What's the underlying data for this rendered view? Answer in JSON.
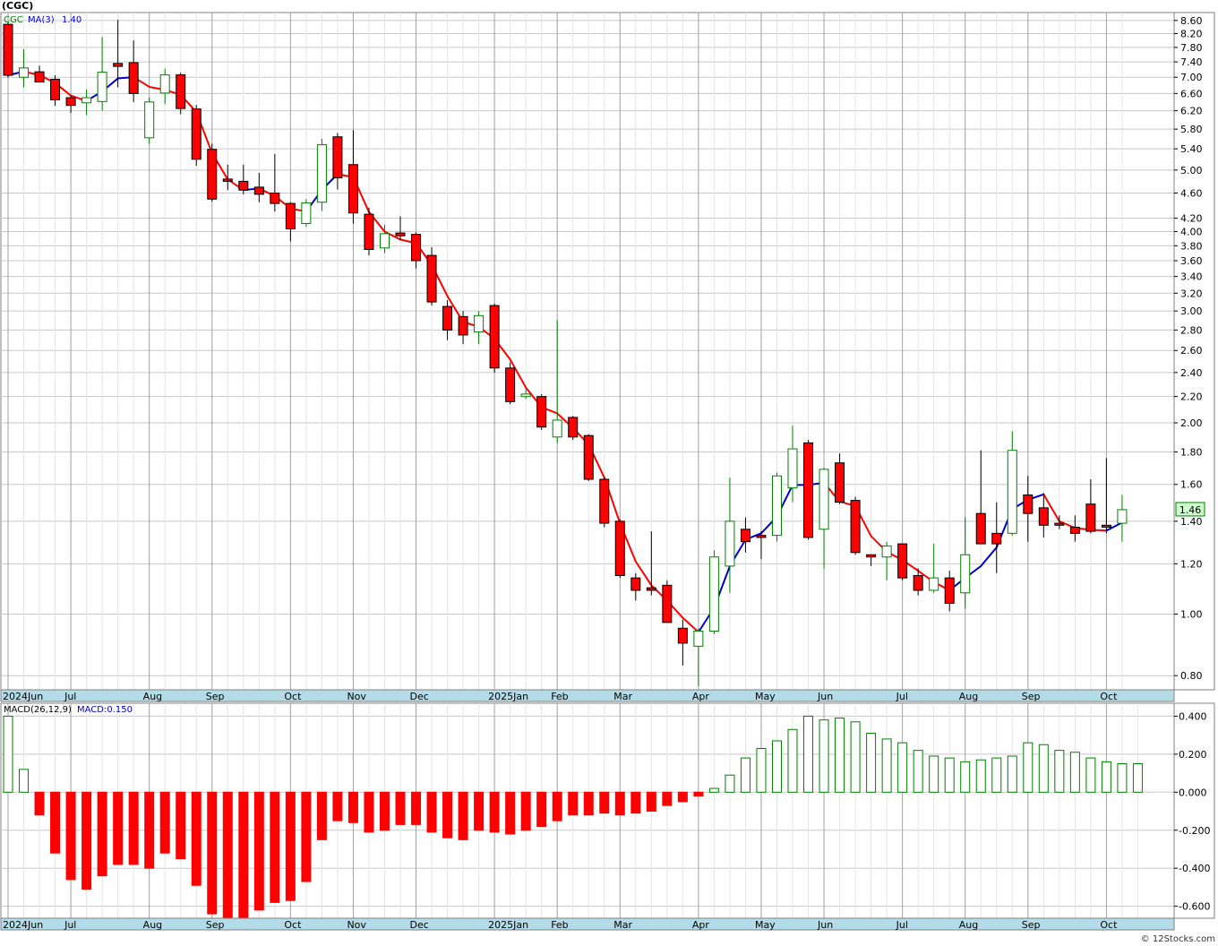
{
  "title": "(CGC)",
  "copyright": "© 12Stocks.com",
  "colors": {
    "up": "#008000",
    "down": "#ff0000",
    "ma_rising": "#0000cc",
    "ma_falling": "#ff0000",
    "macd_pos": "#008000",
    "macd_neg": "#ff0000",
    "axis_bg": "#b4dce8",
    "grid": "#c8c8c8"
  },
  "chart_data": [
    {
      "type": "candlestick",
      "legend": {
        "symbol": "CGC",
        "ma_label": "MA(3)",
        "ma_value": "1.40"
      },
      "last_price_label": "1.46",
      "yscale": "log",
      "ylim": [
        0.76,
        8.85
      ],
      "y_ticks": [
        "0.80",
        "1.00",
        "1.20",
        "1.40",
        "1.60",
        "1.80",
        "2.00",
        "2.20",
        "2.40",
        "2.60",
        "2.80",
        "3.00",
        "3.20",
        "3.40",
        "3.60",
        "3.80",
        "4.00",
        "4.20",
        "4.60",
        "5.00",
        "5.40",
        "5.80",
        "6.20",
        "6.60",
        "7.00",
        "7.40",
        "7.80",
        "8.20",
        "8.60"
      ],
      "x_labels": [
        {
          "i": 0,
          "label": "2024Jun"
        },
        {
          "i": 4,
          "label": "Jul"
        },
        {
          "i": 9,
          "label": "Aug"
        },
        {
          "i": 13,
          "label": "Sep"
        },
        {
          "i": 18,
          "label": "Oct"
        },
        {
          "i": 22,
          "label": "Nov"
        },
        {
          "i": 26,
          "label": "Dec"
        },
        {
          "i": 31,
          "label": "2025Jan"
        },
        {
          "i": 35,
          "label": "Feb"
        },
        {
          "i": 39,
          "label": "Mar"
        },
        {
          "i": 44,
          "label": "Apr"
        },
        {
          "i": 48,
          "label": "May"
        },
        {
          "i": 52,
          "label": "Jun"
        },
        {
          "i": 57,
          "label": "Jul"
        },
        {
          "i": 61,
          "label": "Aug"
        },
        {
          "i": 65,
          "label": "Sep"
        },
        {
          "i": 70,
          "label": "Oct"
        }
      ],
      "candles": [
        {
          "o": 8.48,
          "h": 8.55,
          "l": 6.99,
          "c": 7.05
        },
        {
          "o": 7.0,
          "h": 7.75,
          "l": 6.75,
          "c": 7.24
        },
        {
          "o": 7.14,
          "h": 7.3,
          "l": 6.87,
          "c": 6.88
        },
        {
          "o": 6.95,
          "h": 7.05,
          "l": 6.31,
          "c": 6.45
        },
        {
          "o": 6.5,
          "h": 6.55,
          "l": 6.15,
          "c": 6.32
        },
        {
          "o": 6.38,
          "h": 6.7,
          "l": 6.1,
          "c": 6.5
        },
        {
          "o": 6.41,
          "h": 8.1,
          "l": 6.2,
          "c": 7.13
        },
        {
          "o": 7.36,
          "h": 8.62,
          "l": 6.75,
          "c": 7.28
        },
        {
          "o": 7.38,
          "h": 8.0,
          "l": 6.4,
          "c": 6.6
        },
        {
          "o": 5.62,
          "h": 6.5,
          "l": 5.5,
          "c": 6.4
        },
        {
          "o": 6.61,
          "h": 7.22,
          "l": 6.35,
          "c": 7.06
        },
        {
          "o": 7.06,
          "h": 7.12,
          "l": 6.12,
          "c": 6.25
        },
        {
          "o": 6.24,
          "h": 6.33,
          "l": 5.08,
          "c": 5.2
        },
        {
          "o": 5.39,
          "h": 5.5,
          "l": 4.46,
          "c": 4.5
        },
        {
          "o": 4.84,
          "h": 5.1,
          "l": 4.65,
          "c": 4.8
        },
        {
          "o": 4.8,
          "h": 5.1,
          "l": 4.58,
          "c": 4.65
        },
        {
          "o": 4.7,
          "h": 4.95,
          "l": 4.45,
          "c": 4.58
        },
        {
          "o": 4.6,
          "h": 5.3,
          "l": 4.3,
          "c": 4.43
        },
        {
          "o": 4.43,
          "h": 4.45,
          "l": 3.86,
          "c": 4.04
        },
        {
          "o": 4.12,
          "h": 4.5,
          "l": 4.07,
          "c": 4.44
        },
        {
          "o": 4.45,
          "h": 5.6,
          "l": 4.31,
          "c": 5.48
        },
        {
          "o": 5.64,
          "h": 5.72,
          "l": 4.66,
          "c": 4.86
        },
        {
          "o": 5.1,
          "h": 5.78,
          "l": 4.12,
          "c": 4.28
        },
        {
          "o": 4.26,
          "h": 4.36,
          "l": 3.67,
          "c": 3.75
        },
        {
          "o": 3.77,
          "h": 4.1,
          "l": 3.7,
          "c": 3.97
        },
        {
          "o": 3.98,
          "h": 4.23,
          "l": 3.88,
          "c": 3.94
        },
        {
          "o": 3.96,
          "h": 3.99,
          "l": 3.5,
          "c": 3.6
        },
        {
          "o": 3.67,
          "h": 3.78,
          "l": 3.06,
          "c": 3.1
        },
        {
          "o": 3.05,
          "h": 3.12,
          "l": 2.7,
          "c": 2.8
        },
        {
          "o": 2.94,
          "h": 3.0,
          "l": 2.66,
          "c": 2.75
        },
        {
          "o": 2.78,
          "h": 3.0,
          "l": 2.66,
          "c": 2.95
        },
        {
          "o": 3.06,
          "h": 3.08,
          "l": 2.4,
          "c": 2.44
        },
        {
          "o": 2.44,
          "h": 2.49,
          "l": 2.14,
          "c": 2.16
        },
        {
          "o": 2.2,
          "h": 2.26,
          "l": 2.18,
          "c": 2.22
        },
        {
          "o": 2.2,
          "h": 2.22,
          "l": 1.95,
          "c": 1.97
        },
        {
          "o": 1.9,
          "h": 2.9,
          "l": 1.86,
          "c": 2.02
        },
        {
          "o": 2.04,
          "h": 2.05,
          "l": 1.88,
          "c": 1.9
        },
        {
          "o": 1.91,
          "h": 1.92,
          "l": 1.62,
          "c": 1.63
        },
        {
          "o": 1.63,
          "h": 1.64,
          "l": 1.37,
          "c": 1.39
        },
        {
          "o": 1.4,
          "h": 1.41,
          "l": 1.14,
          "c": 1.15
        },
        {
          "o": 1.14,
          "h": 1.16,
          "l": 1.05,
          "c": 1.09
        },
        {
          "o": 1.1,
          "h": 1.35,
          "l": 1.07,
          "c": 1.09
        },
        {
          "o": 1.11,
          "h": 1.13,
          "l": 0.97,
          "c": 0.97
        },
        {
          "o": 0.95,
          "h": 0.98,
          "l": 0.83,
          "c": 0.9
        },
        {
          "o": 0.89,
          "h": 0.95,
          "l": 0.77,
          "c": 0.94
        },
        {
          "o": 0.94,
          "h": 1.26,
          "l": 0.93,
          "c": 1.23
        },
        {
          "o": 1.19,
          "h": 1.64,
          "l": 1.08,
          "c": 1.4
        },
        {
          "o": 1.36,
          "h": 1.42,
          "l": 1.25,
          "c": 1.3
        },
        {
          "o": 1.33,
          "h": 1.35,
          "l": 1.22,
          "c": 1.32
        },
        {
          "o": 1.33,
          "h": 1.67,
          "l": 1.3,
          "c": 1.65
        },
        {
          "o": 1.58,
          "h": 1.98,
          "l": 1.5,
          "c": 1.82
        },
        {
          "o": 1.86,
          "h": 1.88,
          "l": 1.31,
          "c": 1.32
        },
        {
          "o": 1.36,
          "h": 1.7,
          "l": 1.18,
          "c": 1.69
        },
        {
          "o": 1.73,
          "h": 1.79,
          "l": 1.49,
          "c": 1.5
        },
        {
          "o": 1.51,
          "h": 1.53,
          "l": 1.24,
          "c": 1.25
        },
        {
          "o": 1.24,
          "h": 1.24,
          "l": 1.19,
          "c": 1.23
        },
        {
          "o": 1.23,
          "h": 1.3,
          "l": 1.13,
          "c": 1.28
        },
        {
          "o": 1.29,
          "h": 1.29,
          "l": 1.13,
          "c": 1.14
        },
        {
          "o": 1.15,
          "h": 1.18,
          "l": 1.07,
          "c": 1.09
        },
        {
          "o": 1.09,
          "h": 1.29,
          "l": 1.08,
          "c": 1.14
        },
        {
          "o": 1.14,
          "h": 1.17,
          "l": 1.01,
          "c": 1.04
        },
        {
          "o": 1.08,
          "h": 1.42,
          "l": 1.02,
          "c": 1.24
        },
        {
          "o": 1.44,
          "h": 1.81,
          "l": 1.29,
          "c": 1.29
        },
        {
          "o": 1.34,
          "h": 1.5,
          "l": 1.16,
          "c": 1.29
        },
        {
          "o": 1.34,
          "h": 1.94,
          "l": 1.33,
          "c": 1.81
        },
        {
          "o": 1.54,
          "h": 1.65,
          "l": 1.3,
          "c": 1.44
        },
        {
          "o": 1.47,
          "h": 1.55,
          "l": 1.32,
          "c": 1.38
        },
        {
          "o": 1.39,
          "h": 1.43,
          "l": 1.36,
          "c": 1.38
        },
        {
          "o": 1.37,
          "h": 1.43,
          "l": 1.3,
          "c": 1.34
        },
        {
          "o": 1.49,
          "h": 1.63,
          "l": 1.34,
          "c": 1.35
        },
        {
          "o": 1.38,
          "h": 1.76,
          "l": 1.34,
          "c": 1.37
        },
        {
          "o": 1.39,
          "h": 1.54,
          "l": 1.3,
          "c": 1.46
        }
      ]
    },
    {
      "type": "bar",
      "legend": {
        "label": "MACD(26,12,9)",
        "value_label": "MACD:0.150"
      },
      "ylim": [
        -0.663,
        0.468
      ],
      "y_ticks": [
        "-0.600",
        "-0.400",
        "-0.200",
        "0.000",
        "0.200",
        "0.400"
      ],
      "values": [
        0.4,
        0.12,
        -0.12,
        -0.32,
        -0.46,
        -0.51,
        -0.44,
        -0.38,
        -0.38,
        -0.4,
        -0.32,
        -0.35,
        -0.49,
        -0.64,
        -0.66,
        -0.66,
        -0.62,
        -0.58,
        -0.57,
        -0.47,
        -0.25,
        -0.15,
        -0.16,
        -0.21,
        -0.2,
        -0.17,
        -0.17,
        -0.21,
        -0.24,
        -0.25,
        -0.2,
        -0.21,
        -0.22,
        -0.2,
        -0.18,
        -0.15,
        -0.12,
        -0.12,
        -0.11,
        -0.12,
        -0.11,
        -0.1,
        -0.07,
        -0.05,
        -0.02,
        0.02,
        0.09,
        0.18,
        0.23,
        0.27,
        0.33,
        0.4,
        0.38,
        0.39,
        0.37,
        0.31,
        0.28,
        0.26,
        0.22,
        0.19,
        0.18,
        0.16,
        0.17,
        0.18,
        0.19,
        0.26,
        0.25,
        0.22,
        0.21,
        0.18,
        0.16,
        0.15,
        0.15
      ]
    }
  ]
}
